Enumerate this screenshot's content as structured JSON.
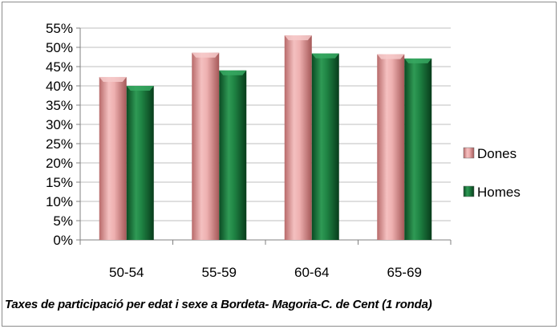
{
  "chart_data": {
    "type": "bar",
    "title": "Taxes de participació per edat i sexe  a Bordeta- Magoria-C. de Cent (1 ronda)",
    "categories": [
      "50-54",
      "55-59",
      "60-64",
      "65-69"
    ],
    "series": [
      {
        "name": "Dones",
        "values": [
          42.3,
          48.6,
          53.1,
          48.2
        ],
        "color": "#e8a0a0"
      },
      {
        "name": "Homes",
        "values": [
          40.0,
          44.0,
          48.4,
          47.1
        ],
        "color": "#1f7a3c"
      }
    ],
    "yticks": [
      "0%",
      "5%",
      "10%",
      "15%",
      "20%",
      "25%",
      "30%",
      "35%",
      "40%",
      "45%",
      "50%",
      "55%"
    ],
    "ylim": [
      0,
      55
    ],
    "ytick_step": 5,
    "grid": true,
    "legend": "right",
    "value_format": "percent"
  }
}
